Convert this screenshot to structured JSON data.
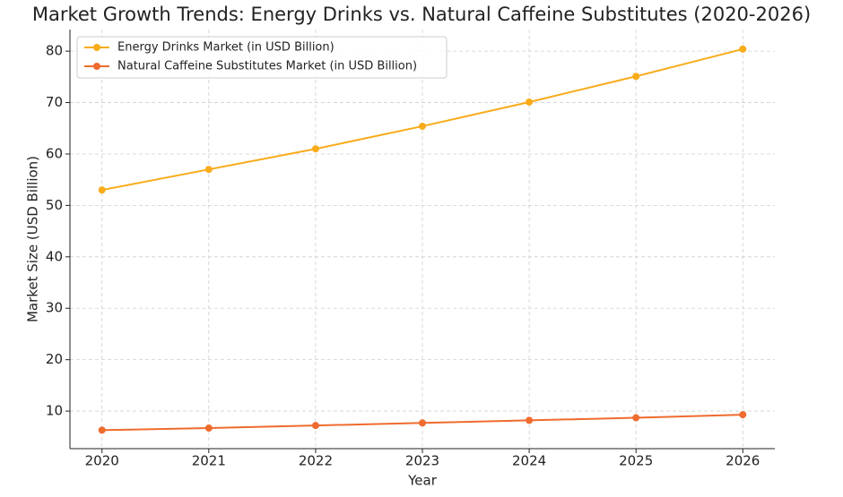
{
  "chart_data": {
    "type": "line",
    "title": "Market Growth Trends: Energy Drinks vs. Natural Caffeine Substitutes (2020-2026)",
    "x_label": "Year",
    "y_label": "Market Size (USD Billion)",
    "x": [
      2020,
      2021,
      2022,
      2023,
      2024,
      2025,
      2026
    ],
    "series": [
      {
        "name": "Energy Drinks Market (in USD Billion)",
        "color": "#f9ab1a",
        "values": [
          53.0,
          57.0,
          61.0,
          65.4,
          70.1,
          75.1,
          80.4
        ]
      },
      {
        "name": "Natural Caffeine Substitutes Market (in USD Billion)",
        "color": "#ef6b2e",
        "values": [
          6.3,
          6.7,
          7.2,
          7.7,
          8.2,
          8.7,
          9.3
        ]
      }
    ],
    "xlim": [
      2019.7,
      2026.3
    ],
    "xticks": [
      2020,
      2021,
      2022,
      2023,
      2024,
      2025,
      2026
    ],
    "ylim": [
      2.7,
      84.2
    ],
    "yticks": [
      10,
      20,
      30,
      40,
      50,
      60,
      70,
      80
    ],
    "grid": true,
    "legend": "upper left"
  }
}
